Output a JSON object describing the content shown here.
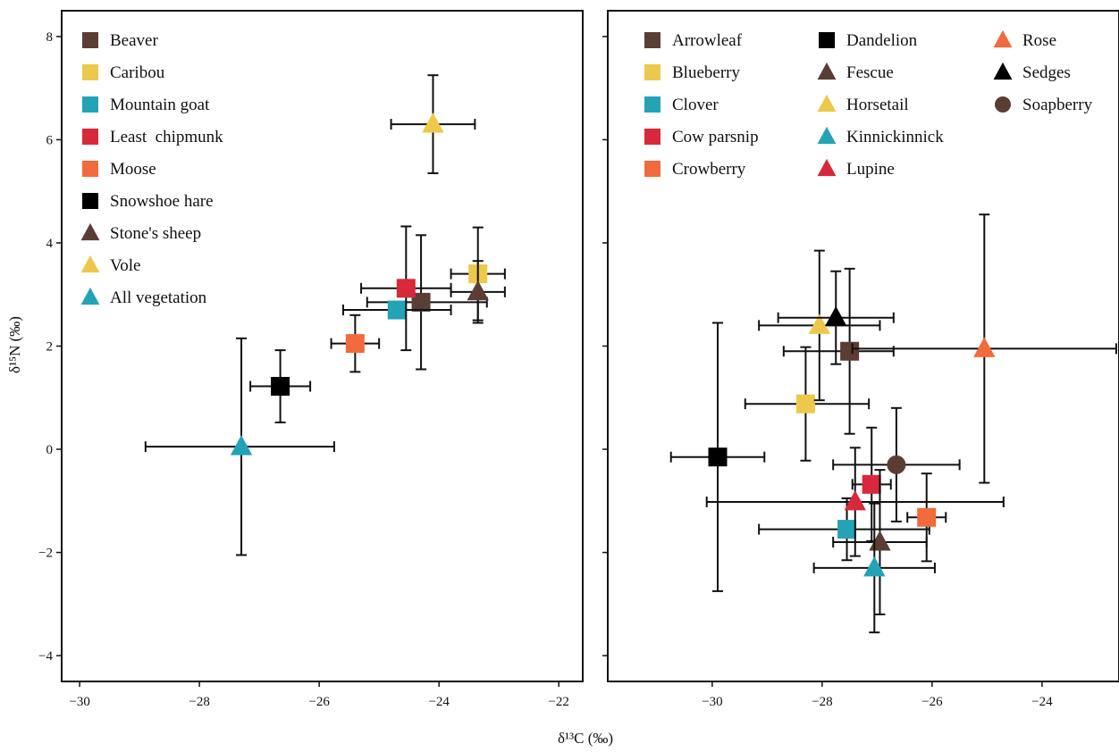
{
  "figure": {
    "xlabel": "δ¹³C (‰)",
    "ylabel": "δ¹⁵N (‰)"
  },
  "chart_data": [
    {
      "type": "scatter",
      "panel": "animals",
      "xlabel": "δ¹³C (‰)",
      "ylabel": "δ¹⁵N (‰)",
      "xlim": [
        -30.3,
        -21.6
      ],
      "ylim": [
        -4.5,
        8.5
      ],
      "xticks": [
        -30,
        -28,
        -26,
        -24,
        -22
      ],
      "yticks": [
        -4,
        -2,
        0,
        2,
        4,
        6,
        8
      ],
      "legend_position": "top-left",
      "series": [
        {
          "name": "Beaver",
          "marker": "square",
          "color": "#5a3e36",
          "x": -24.3,
          "y": 2.85,
          "x_err": [
            0.9,
            1.1
          ],
          "y_err": [
            1.3,
            1.3
          ]
        },
        {
          "name": "Caribou",
          "marker": "square",
          "color": "#ecc94b",
          "x": -23.35,
          "y": 3.4,
          "x_err": [
            0.45,
            0.45
          ],
          "y_err": [
            0.9,
            0.9
          ]
        },
        {
          "name": "Mountain goat",
          "marker": "square",
          "color": "#25a3b6",
          "x": -24.7,
          "y": 2.7,
          "x_err": [
            0.9,
            0.9
          ],
          "y_err": [
            0.0,
            0.0
          ]
        },
        {
          "name": "Least  chipmunk",
          "marker": "square",
          "color": "#d8283c",
          "x": -24.55,
          "y": 3.12,
          "x_err": [
            0.75,
            0.75
          ],
          "y_err": [
            1.2,
            1.2
          ]
        },
        {
          "name": "Moose",
          "marker": "square",
          "color": "#f26a3d",
          "x": -25.4,
          "y": 2.05,
          "x_err": [
            0.4,
            0.4
          ],
          "y_err": [
            0.55,
            0.55
          ]
        },
        {
          "name": "Snowshoe hare",
          "marker": "square",
          "color": "#000000",
          "x": -26.65,
          "y": 1.22,
          "x_err": [
            0.5,
            0.5
          ],
          "y_err": [
            0.7,
            0.7
          ]
        },
        {
          "name": "Stone's sheep",
          "marker": "triangle",
          "color": "#5a3e36",
          "x": -23.35,
          "y": 3.05,
          "x_err": [
            0.45,
            0.45
          ],
          "y_err": [
            0.6,
            0.6
          ]
        },
        {
          "name": "Vole",
          "marker": "triangle",
          "color": "#ecc94b",
          "x": -24.1,
          "y": 6.3,
          "x_err": [
            0.7,
            0.7
          ],
          "y_err": [
            0.95,
            0.95
          ]
        },
        {
          "name": "All vegetation",
          "marker": "triangle",
          "color": "#25a3b6",
          "x": -27.3,
          "y": 0.05,
          "x_err": [
            1.6,
            1.55
          ],
          "y_err": [
            2.1,
            2.1
          ]
        }
      ]
    },
    {
      "type": "scatter",
      "panel": "plants",
      "xlabel": "δ¹³C (‰)",
      "ylabel": "δ¹⁵N (‰)",
      "xlim": [
        -31.9,
        -22.6
      ],
      "ylim": [
        -4.5,
        8.5
      ],
      "xticks": [
        -30,
        -28,
        -26,
        -24
      ],
      "yticks": [
        -4,
        -2,
        0,
        2,
        4,
        6,
        8
      ],
      "legend_position": "top",
      "series": [
        {
          "name": "Arrowleaf",
          "marker": "square",
          "color": "#5a3e36",
          "x": -27.5,
          "y": 1.9,
          "x_err": [
            1.2,
            0.8
          ],
          "y_err": [
            1.6,
            1.6
          ]
        },
        {
          "name": "Blueberry",
          "marker": "square",
          "color": "#ecc94b",
          "x": -28.3,
          "y": 0.88,
          "x_err": [
            1.1,
            1.15
          ],
          "y_err": [
            1.1,
            1.1
          ]
        },
        {
          "name": "Clover",
          "marker": "square",
          "color": "#25a3b6",
          "x": -27.55,
          "y": -1.55,
          "x_err": [
            1.6,
            1.5
          ],
          "y_err": [
            0.6,
            0.6
          ]
        },
        {
          "name": "Cow parsnip",
          "marker": "square",
          "color": "#d8283c",
          "x": -27.1,
          "y": -0.68,
          "x_err": [
            0.35,
            0.35
          ],
          "y_err": [
            1.1,
            1.1
          ]
        },
        {
          "name": "Crowberry",
          "marker": "square",
          "color": "#f26a3d",
          "x": -26.1,
          "y": -1.32,
          "x_err": [
            0.35,
            0.35
          ],
          "y_err": [
            0.85,
            0.85
          ]
        },
        {
          "name": "Dandelion",
          "marker": "square",
          "color": "#000000",
          "x": -29.9,
          "y": -0.15,
          "x_err": [
            0.85,
            0.85
          ],
          "y_err": [
            2.6,
            2.6
          ]
        },
        {
          "name": "Fescue",
          "marker": "triangle",
          "color": "#5a3e36",
          "x": -26.95,
          "y": -1.8,
          "x_err": [
            0.85,
            0.85
          ],
          "y_err": [
            1.4,
            1.4
          ]
        },
        {
          "name": "Horsetail",
          "marker": "triangle",
          "color": "#ecc94b",
          "x": -28.05,
          "y": 2.4,
          "x_err": [
            1.1,
            1.1
          ],
          "y_err": [
            1.45,
            1.45
          ]
        },
        {
          "name": "Kinnickinnick",
          "marker": "triangle",
          "color": "#25a3b6",
          "x": -27.05,
          "y": -2.3,
          "x_err": [
            1.1,
            1.1
          ],
          "y_err": [
            1.25,
            1.25
          ]
        },
        {
          "name": "Lupine",
          "marker": "triangle",
          "color": "#d8283c",
          "x": -27.4,
          "y": -1.02,
          "x_err": [
            2.7,
            2.7
          ],
          "y_err": [
            1.05,
            1.05
          ]
        },
        {
          "name": "Rose",
          "marker": "triangle",
          "color": "#f26a3d",
          "x": -25.05,
          "y": 1.95,
          "x_err": [
            2.4,
            2.4
          ],
          "y_err": [
            2.6,
            2.6
          ]
        },
        {
          "name": "Sedges",
          "marker": "triangle",
          "color": "#000000",
          "x": -27.75,
          "y": 2.55,
          "x_err": [
            1.05,
            1.05
          ],
          "y_err": [
            0.9,
            0.9
          ]
        },
        {
          "name": "Soapberry",
          "marker": "circle",
          "color": "#5a3e36",
          "x": -26.65,
          "y": -0.3,
          "x_err": [
            1.15,
            1.15
          ],
          "y_err": [
            1.1,
            1.1
          ]
        }
      ]
    }
  ]
}
